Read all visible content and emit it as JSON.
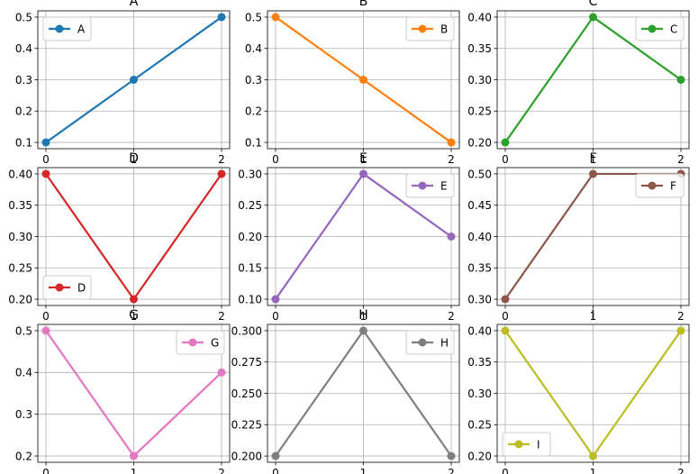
{
  "chart_data": [
    {
      "type": "line",
      "title": "A",
      "x": [
        0,
        1,
        2
      ],
      "series": [
        {
          "name": "A",
          "values": [
            0.1,
            0.3,
            0.5
          ],
          "color": "#1f77b4"
        }
      ],
      "xticks": [
        "0",
        "1",
        "2"
      ],
      "yticks": [
        "0.1",
        "0.2",
        "0.3",
        "0.4",
        "0.5"
      ],
      "ylim": [
        0.08,
        0.52
      ],
      "grid": true,
      "legend": "top-left"
    },
    {
      "type": "line",
      "title": "B",
      "x": [
        0,
        1,
        2
      ],
      "series": [
        {
          "name": "B",
          "values": [
            0.5,
            0.3,
            0.1
          ],
          "color": "#ff7f0e"
        }
      ],
      "xticks": [
        "0",
        "1",
        "2"
      ],
      "yticks": [
        "0.1",
        "0.2",
        "0.3",
        "0.4",
        "0.5"
      ],
      "ylim": [
        0.08,
        0.52
      ],
      "grid": true,
      "legend": "top-right"
    },
    {
      "type": "line",
      "title": "C",
      "x": [
        0,
        1,
        2
      ],
      "series": [
        {
          "name": "C",
          "values": [
            0.2,
            0.4,
            0.3
          ],
          "color": "#2ca02c"
        }
      ],
      "xticks": [
        "0",
        "1",
        "2"
      ],
      "yticks": [
        "0.20",
        "0.25",
        "0.30",
        "0.35",
        "0.40"
      ],
      "ylim": [
        0.19,
        0.41
      ],
      "grid": true,
      "legend": "top-right"
    },
    {
      "type": "line",
      "title": "D",
      "x": [
        0,
        1,
        2
      ],
      "series": [
        {
          "name": "D",
          "values": [
            0.4,
            0.2,
            0.4
          ],
          "color": "#d62728"
        }
      ],
      "xticks": [
        "0",
        "1",
        "2"
      ],
      "yticks": [
        "0.20",
        "0.25",
        "0.30",
        "0.35",
        "0.40"
      ],
      "ylim": [
        0.19,
        0.41
      ],
      "grid": true,
      "legend": "bottom-left"
    },
    {
      "type": "line",
      "title": "E",
      "x": [
        0,
        1,
        2
      ],
      "series": [
        {
          "name": "E",
          "values": [
            0.1,
            0.3,
            0.2
          ],
          "color": "#9467bd"
        }
      ],
      "xticks": [
        "0",
        "1",
        "2"
      ],
      "yticks": [
        "0.10",
        "0.15",
        "0.20",
        "0.25",
        "0.30"
      ],
      "ylim": [
        0.09,
        0.31
      ],
      "grid": true,
      "legend": "top-right"
    },
    {
      "type": "line",
      "title": "F",
      "x": [
        0,
        1,
        2
      ],
      "series": [
        {
          "name": "F",
          "values": [
            0.3,
            0.5,
            0.5
          ],
          "color": "#8c564b"
        }
      ],
      "xticks": [
        "0",
        "1",
        "2"
      ],
      "yticks": [
        "0.30",
        "0.35",
        "0.40",
        "0.45",
        "0.50"
      ],
      "ylim": [
        0.29,
        0.51
      ],
      "grid": true,
      "legend": "top-right"
    },
    {
      "type": "line",
      "title": "G",
      "x": [
        0,
        1,
        2
      ],
      "series": [
        {
          "name": "G",
          "values": [
            0.5,
            0.2,
            0.4
          ],
          "color": "#e377c2"
        }
      ],
      "xticks": [
        "0",
        "1",
        "2"
      ],
      "yticks": [
        "0.2",
        "0.3",
        "0.4",
        "0.5"
      ],
      "ylim": [
        0.185,
        0.515
      ],
      "grid": true,
      "legend": "top-right"
    },
    {
      "type": "line",
      "title": "H",
      "x": [
        0,
        1,
        2
      ],
      "series": [
        {
          "name": "H",
          "values": [
            0.2,
            0.3,
            0.2
          ],
          "color": "#7f7f7f"
        }
      ],
      "xticks": [
        "0",
        "1",
        "2"
      ],
      "yticks": [
        "0.200",
        "0.225",
        "0.250",
        "0.275",
        "0.300"
      ],
      "ylim": [
        0.195,
        0.305
      ],
      "grid": true,
      "legend": "top-right"
    },
    {
      "type": "line",
      "title": "I",
      "x": [
        0,
        1,
        2
      ],
      "series": [
        {
          "name": "I",
          "values": [
            0.4,
            0.2,
            0.4
          ],
          "color": "#bcbd22"
        }
      ],
      "xticks": [
        "0",
        "1",
        "2"
      ],
      "yticks": [
        "0.20",
        "0.25",
        "0.30",
        "0.35",
        "0.40"
      ],
      "ylim": [
        0.19,
        0.41
      ],
      "grid": true,
      "legend": "bottom-left"
    }
  ]
}
